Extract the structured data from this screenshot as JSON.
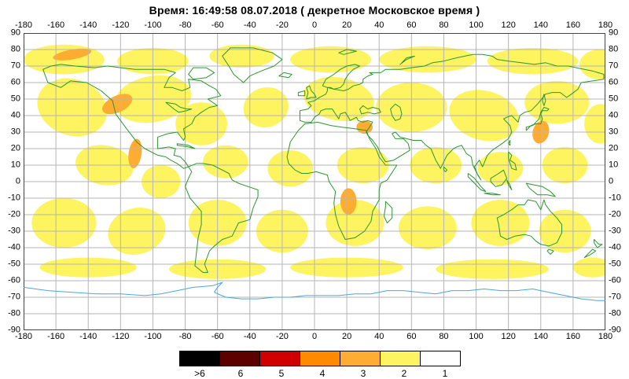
{
  "title": "Время: 16:49:58   08.07.2018  ( декретное Московское время )",
  "chart_data": {
    "type": "heatmap",
    "projection": "equirectangular",
    "lon_range": [
      -180,
      180
    ],
    "lat_range": [
      -90,
      90
    ],
    "grid": true,
    "lon_ticks": [
      -180,
      -160,
      -140,
      -120,
      -100,
      -80,
      -60,
      -40,
      -20,
      0,
      20,
      40,
      60,
      80,
      100,
      120,
      140,
      160,
      180
    ],
    "lat_ticks": [
      90,
      80,
      70,
      60,
      50,
      40,
      30,
      20,
      10,
      0,
      -10,
      -20,
      -30,
      -40,
      -50,
      -60,
      -70,
      -80,
      -90
    ],
    "scale": [
      {
        "label": ">6",
        "color": "#000000"
      },
      {
        "label": "6",
        "color": "#5c0000"
      },
      {
        "label": "5",
        "color": "#d10000"
      },
      {
        "label": "4",
        "color": "#ff8a00"
      },
      {
        "label": "3",
        "color": "#ffac33"
      },
      {
        "label": "2",
        "color": "#fdf460"
      },
      {
        "label": "1",
        "color": "#ffffff"
      }
    ],
    "background_level_label": "1",
    "regions_format": "[level, lon_center, lat_center, rx_deg, ry_deg, rotation_deg]",
    "regions": [
      [
        2,
        -155,
        74,
        25,
        9,
        0
      ],
      [
        2,
        -100,
        73,
        22,
        8,
        0
      ],
      [
        2,
        -45,
        76,
        20,
        7,
        0
      ],
      [
        2,
        10,
        74,
        25,
        8,
        0
      ],
      [
        2,
        70,
        74,
        30,
        8,
        0
      ],
      [
        2,
        135,
        73,
        28,
        8,
        0
      ],
      [
        2,
        176,
        71,
        12,
        9,
        0
      ],
      [
        2,
        -150,
        45,
        22,
        17,
        20
      ],
      [
        2,
        -100,
        50,
        24,
        14,
        -10
      ],
      [
        2,
        -70,
        35,
        16,
        13,
        0
      ],
      [
        2,
        -30,
        45,
        14,
        12,
        -15
      ],
      [
        2,
        15,
        50,
        22,
        13,
        10
      ],
      [
        2,
        60,
        45,
        22,
        15,
        0
      ],
      [
        2,
        105,
        40,
        22,
        15,
        15
      ],
      [
        2,
        150,
        48,
        20,
        13,
        0
      ],
      [
        2,
        177,
        35,
        10,
        12,
        0
      ],
      [
        2,
        -130,
        10,
        18,
        12,
        10
      ],
      [
        2,
        -95,
        0,
        12,
        10,
        0
      ],
      [
        2,
        -55,
        12,
        14,
        10,
        0
      ],
      [
        2,
        -15,
        8,
        14,
        11,
        0
      ],
      [
        2,
        30,
        10,
        16,
        11,
        0
      ],
      [
        2,
        75,
        10,
        16,
        11,
        0
      ],
      [
        2,
        115,
        8,
        14,
        10,
        0
      ],
      [
        2,
        155,
        10,
        14,
        11,
        0
      ],
      [
        2,
        -155,
        -25,
        20,
        15,
        0
      ],
      [
        2,
        -110,
        -30,
        18,
        14,
        -15
      ],
      [
        2,
        -60,
        -25,
        18,
        14,
        0
      ],
      [
        2,
        -20,
        -30,
        16,
        13,
        0
      ],
      [
        2,
        25,
        -25,
        18,
        14,
        0
      ],
      [
        2,
        70,
        -28,
        18,
        13,
        0
      ],
      [
        2,
        115,
        -25,
        18,
        14,
        0
      ],
      [
        2,
        155,
        -30,
        16,
        13,
        0
      ],
      [
        2,
        -140,
        -52,
        30,
        6,
        0
      ],
      [
        2,
        -60,
        -53,
        30,
        6,
        0
      ],
      [
        2,
        20,
        -52,
        35,
        6,
        0
      ],
      [
        2,
        110,
        -53,
        35,
        6,
        0
      ],
      [
        2,
        172,
        -52,
        12,
        6,
        0
      ],
      [
        3,
        -150,
        77,
        12,
        3,
        -10
      ],
      [
        3,
        -122,
        47,
        10,
        5,
        -25
      ],
      [
        3,
        -111,
        17,
        4,
        9,
        8
      ],
      [
        3,
        31,
        33,
        5,
        4,
        0
      ],
      [
        3,
        21,
        -12,
        5,
        8,
        0
      ],
      [
        3,
        140,
        30,
        5,
        7,
        15
      ]
    ],
    "colors": {
      "grid": "#b5b5b5",
      "frame": "#444444",
      "coastline": "#2e962e",
      "antarctica_coast": "#4da6d8"
    }
  }
}
